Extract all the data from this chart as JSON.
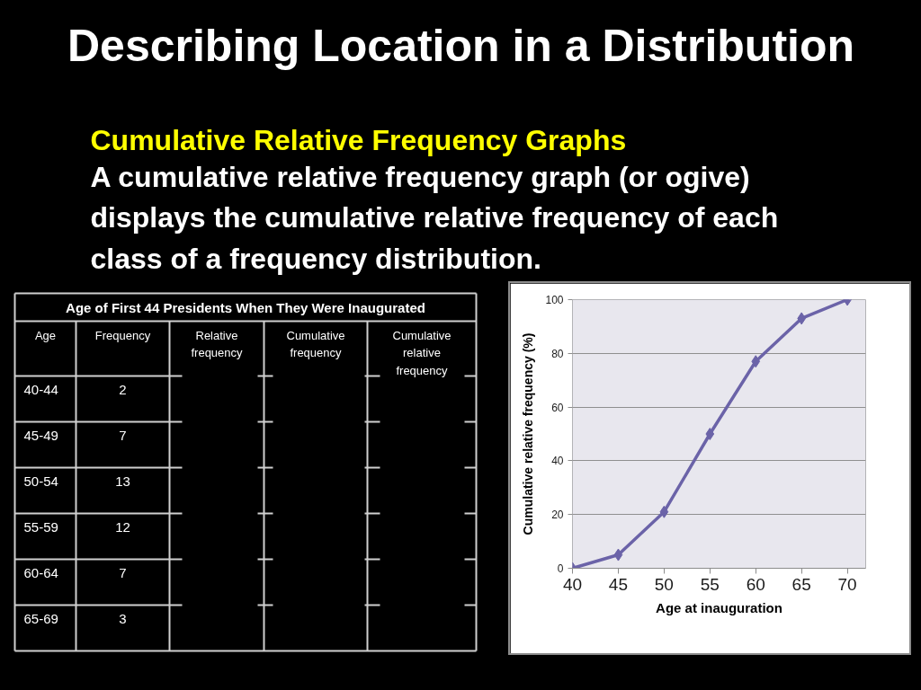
{
  "chart_data": [
    {
      "type": "other",
      "title": "Describing Location in a Distribution",
      "subtitle": "Cumulative Relative Frequency Graphs",
      "annotations": [
        "A cumulative relative frequency graph (or ogive) displays the cumulative relative frequency of each class of a frequency distribution."
      ]
    },
    {
      "type": "other",
      "title": "Age of First 44 Presidents When They Were Inaugurated",
      "annotations": [
        "Age",
        "Frequency",
        "Relative frequency",
        "Cumulative frequency",
        "Cumulative relative frequency"
      ],
      "categories": [
        "40-44",
        "45-49",
        "50-54",
        "55-59",
        "60-64",
        "65-69"
      ],
      "values": [
        2,
        7,
        13,
        12,
        7,
        3
      ],
      "data_labels": true
    },
    {
      "type": "line",
      "x": [
        40,
        45,
        50,
        55,
        60,
        65,
        70
      ],
      "values": [
        0,
        5,
        21,
        50,
        77,
        93,
        100
      ],
      "color": "#6b63a8",
      "marker": "diamond",
      "xlim": [
        40,
        72
      ],
      "xticks": [
        40,
        45,
        50,
        55,
        60,
        65,
        70
      ],
      "ylim": [
        0,
        100
      ],
      "yticks": [
        0,
        20,
        40,
        60,
        80,
        100
      ],
      "grid": "y",
      "xlabel": "Age at inauguration",
      "ylabel": "Cumulative relative frequency (%)"
    }
  ]
}
